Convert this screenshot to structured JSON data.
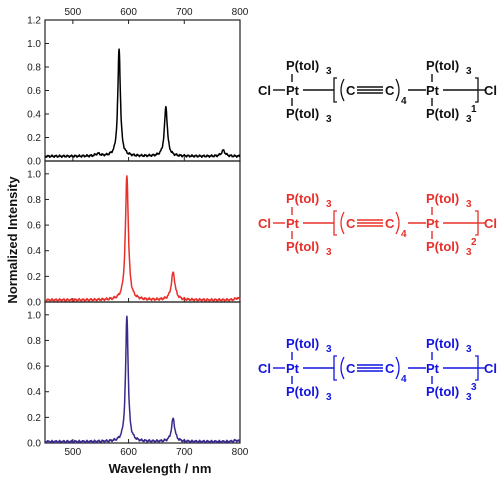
{
  "figure": {
    "xlabel": "Wavelength / nm",
    "ylabel": "Normalized Intensity"
  },
  "chart_data": [
    {
      "type": "line",
      "panel": "top",
      "color": "#000000",
      "xlim": [
        450,
        800
      ],
      "ylim": [
        0,
        1.2
      ],
      "x_ticks": [
        500,
        600,
        700,
        800
      ],
      "y_ticks": [
        0.0,
        0.2,
        0.4,
        0.6,
        0.8,
        1.0,
        1.2
      ],
      "peaks": [
        {
          "x": 545,
          "y": 0.06,
          "w": 6
        },
        {
          "x": 583,
          "y": 0.95,
          "w": 3.5
        },
        {
          "x": 667,
          "y": 0.46,
          "w": 4
        },
        {
          "x": 770,
          "y": 0.09,
          "w": 5
        }
      ],
      "baseline": 0.04
    },
    {
      "type": "line",
      "panel": "middle",
      "color": "#e8302a",
      "xlim": [
        450,
        800
      ],
      "ylim": [
        0,
        1.1
      ],
      "y_ticks": [
        0.0,
        0.2,
        0.4,
        0.6,
        0.8,
        1.0
      ],
      "peaks": [
        {
          "x": 597,
          "y": 0.985,
          "w": 4
        },
        {
          "x": 680,
          "y": 0.23,
          "w": 5
        },
        {
          "x": 795,
          "y": 0.03,
          "w": 6
        }
      ],
      "baseline": 0.015
    },
    {
      "type": "line",
      "panel": "bottom",
      "color": "#3b2a8c",
      "xlim": [
        450,
        800
      ],
      "ylim": [
        0,
        1.1
      ],
      "x_ticks": [
        500,
        600,
        700,
        800
      ],
      "y_ticks": [
        0.0,
        0.2,
        0.4,
        0.6,
        0.8,
        1.0
      ],
      "peaks": [
        {
          "x": 597,
          "y": 0.99,
          "w": 3.5
        },
        {
          "x": 680,
          "y": 0.19,
          "w": 4.5
        },
        {
          "x": 793,
          "y": 0.02,
          "w": 6
        }
      ],
      "baseline": 0.01
    }
  ],
  "structures": [
    {
      "color": "#111111",
      "cl_left": "Cl",
      "pt_left": "Pt",
      "ptol_top": "P(tol)",
      "ptol_bottom": "P(tol)",
      "three": "3",
      "c1": "C",
      "c2": "C",
      "n": "4",
      "pt_right": "Pt",
      "cl_right": "Cl",
      "m": "1"
    },
    {
      "color": "#e8302a",
      "cl_left": "Cl",
      "pt_left": "Pt",
      "ptol_top": "P(tol)",
      "ptol_bottom": "P(tol)",
      "three": "3",
      "c1": "C",
      "c2": "C",
      "n": "4",
      "pt_right": "Pt",
      "cl_right": "Cl",
      "m": "2"
    },
    {
      "color": "#1414e0",
      "cl_left": "Cl",
      "pt_left": "Pt",
      "ptol_top": "P(tol)",
      "ptol_bottom": "P(tol)",
      "three": "3",
      "c1": "C",
      "c2": "C",
      "n": "4",
      "pt_right": "Pt",
      "cl_right": "Cl",
      "m": "3"
    }
  ]
}
